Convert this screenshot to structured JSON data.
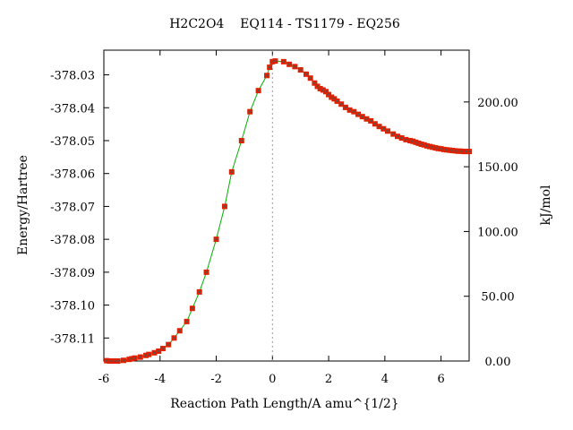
{
  "chart_data": {
    "type": "scatter",
    "title": "H2C2O4    EQ114 - TS1179 - EQ256",
    "xlabel": "Reaction Path Length/A amu^{1/2}",
    "ylabel": "Energy/Hartree",
    "y2label": "kJ/mol",
    "xlim": [
      -6,
      7
    ],
    "ylim": [
      -378.117,
      -378.0225
    ],
    "y2lim": [
      0,
      240
    ],
    "x_ticks": [
      -6,
      -4,
      -2,
      0,
      2,
      4,
      6
    ],
    "x_tick_labels": [
      "-6",
      "-4",
      "-2",
      "0",
      "2",
      "4",
      "6"
    ],
    "y_ticks": [
      -378.03,
      -378.04,
      -378.05,
      -378.06,
      -378.07,
      -378.08,
      -378.09,
      -378.1,
      -378.11
    ],
    "y_tick_labels": [
      "-378.03",
      "-378.04",
      "-378.05",
      "-378.06",
      "-378.07",
      "-378.08",
      "-378.09",
      "-378.10",
      "-378.11"
    ],
    "y2_ticks": [
      0,
      50,
      100,
      150,
      200
    ],
    "y2_tick_labels": [
      "0.00",
      "50.00",
      "100.00",
      "150.00",
      "200.00"
    ],
    "ts_x": 0,
    "grid": false,
    "colors": {
      "line": "#00b000",
      "marker": "#e02000",
      "marker_center": "#555555",
      "ts_line": "#999999",
      "axis": "#000000"
    },
    "series": [
      {
        "x": [
          -5.9,
          -5.8,
          -5.7,
          -5.6,
          -5.5,
          -5.3,
          -5.1,
          -5.0,
          -4.9,
          -4.7,
          -4.5,
          -4.4,
          -4.2,
          -4.05,
          -3.9,
          -3.7,
          -3.5,
          -3.3,
          -3.05,
          -2.85,
          -2.6,
          -2.35,
          -2.0,
          -1.7,
          -1.45,
          -1.1,
          -0.8,
          -0.5,
          -0.2,
          -0.1,
          0.0,
          0.1,
          0.4,
          0.6,
          0.8,
          1.0,
          1.2,
          1.35,
          1.5,
          1.6,
          1.7,
          1.8,
          1.9,
          2.0,
          2.1,
          2.2,
          2.3,
          2.45,
          2.6,
          2.75,
          2.9,
          3.05,
          3.2,
          3.35,
          3.5,
          3.65,
          3.8,
          3.95,
          4.1,
          4.3,
          4.45,
          4.6,
          4.75,
          4.9,
          5.0,
          5.1,
          5.2,
          5.3,
          5.4,
          5.5,
          5.6,
          5.7,
          5.8,
          5.9,
          6.0,
          6.1,
          6.2,
          6.3,
          6.4,
          6.5,
          6.6,
          6.7,
          6.8,
          6.9,
          7.0
        ],
        "y": [
          -378.1169,
          -378.117,
          -378.117,
          -378.117,
          -378.117,
          -378.1168,
          -378.1165,
          -378.1163,
          -378.1161,
          -378.1158,
          -378.1153,
          -378.115,
          -378.1145,
          -378.114,
          -378.1132,
          -378.112,
          -378.11,
          -378.1078,
          -378.105,
          -378.101,
          -378.096,
          -378.09,
          -378.08,
          -378.07,
          -378.0595,
          -378.05,
          -378.0412,
          -378.0348,
          -378.0302,
          -378.0277,
          -378.026,
          -378.0258,
          -378.026,
          -378.0268,
          -378.0275,
          -378.0285,
          -378.0298,
          -378.031,
          -378.0325,
          -378.0335,
          -378.0342,
          -378.0346,
          -378.0351,
          -378.036,
          -378.0368,
          -378.0373,
          -378.038,
          -378.0389,
          -378.0399,
          -378.0407,
          -378.0412,
          -378.042,
          -378.0427,
          -378.0434,
          -378.044,
          -378.0449,
          -378.0457,
          -378.0464,
          -378.0471,
          -378.048,
          -378.0487,
          -378.0492,
          -378.0497,
          -378.05,
          -378.0502,
          -378.0505,
          -378.0508,
          -378.0511,
          -378.0513,
          -378.0516,
          -378.0518,
          -378.052,
          -378.0522,
          -378.0524,
          -378.0525,
          -378.0527,
          -378.0528,
          -378.0529,
          -378.053,
          -378.0531,
          -378.0532,
          -378.0532,
          -378.0533,
          -378.0533,
          -378.0533
        ]
      }
    ]
  }
}
